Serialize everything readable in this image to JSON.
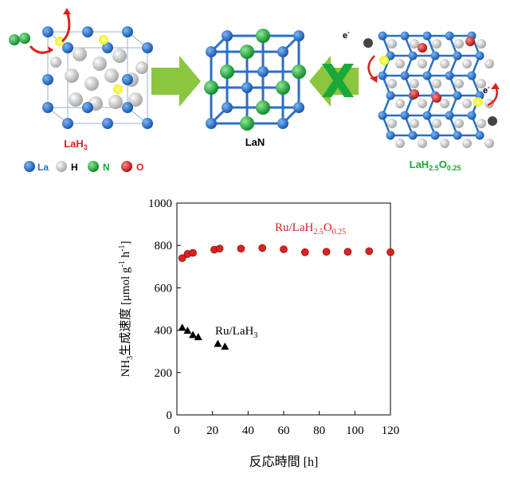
{
  "schematic": {
    "lah3_label": "LaH",
    "lah3_label_sub": "3",
    "lan_label": "LaN",
    "lah25o_label_main": "LaH",
    "lah25o_label_sub1": "2.5",
    "lah25o_label_o": "O",
    "lah25o_label_sub2": "0.25",
    "electron": "e",
    "electron_sup": "-",
    "legend": [
      {
        "symbol": "La",
        "color": "#1e6fd0"
      },
      {
        "symbol": "H",
        "color": "#d8d8d8"
      },
      {
        "symbol": "N",
        "color": "#1aa83a"
      },
      {
        "symbol": "O",
        "color": "#d42020"
      }
    ],
    "colors": {
      "la": "#1e6fd0",
      "h": "#d8d8d8",
      "n": "#1aa83a",
      "o": "#d42020",
      "arrow": "#8cc63f",
      "cross": "#1aa83a",
      "label_red": "#e02020",
      "label_green": "#1aa83a"
    }
  },
  "chart_data": {
    "type": "scatter",
    "xlabel": "反応時間 [h]",
    "ylabel_main": "NH",
    "ylabel_sub": "3",
    "ylabel_rest": "生成速度 [μmol g",
    "ylabel_sup1": "-1",
    "ylabel_h": " h",
    "ylabel_sup2": "-1",
    "ylabel_close": "]",
    "xlim": [
      0,
      120
    ],
    "ylim": [
      0,
      1000
    ],
    "xticks": [
      0,
      20,
      40,
      60,
      80,
      100,
      120
    ],
    "yticks": [
      0,
      200,
      400,
      600,
      800,
      1000
    ],
    "series": [
      {
        "name": "Ru/LaH2.5O0.25",
        "name_main": "Ru/LaH",
        "name_sub1": "2.5",
        "name_o": "O",
        "name_sub2": "0.25",
        "marker": "circle",
        "color": "#e02020",
        "x": [
          3,
          6,
          9,
          21,
          24,
          36,
          48,
          60,
          72,
          84,
          96,
          108,
          120
        ],
        "y": [
          740,
          760,
          765,
          780,
          785,
          785,
          788,
          782,
          768,
          770,
          770,
          773,
          768
        ]
      },
      {
        "name": "Ru/LaH3",
        "name_main": "Ru/LaH",
        "name_sub1": "3",
        "marker": "triangle",
        "color": "#000000",
        "x": [
          3,
          6,
          9,
          12,
          23,
          27
        ],
        "y": [
          412,
          398,
          378,
          368,
          336,
          323
        ]
      }
    ]
  }
}
